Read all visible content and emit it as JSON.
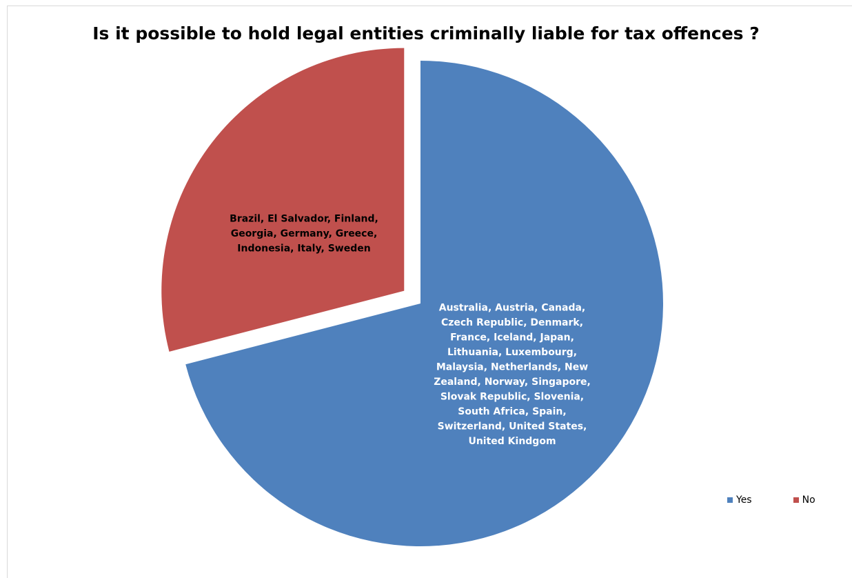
{
  "chart_data": {
    "type": "pie",
    "title": "Is it possible to hold legal entities criminally liable for tax offences ?",
    "categories": [
      "Yes",
      "No"
    ],
    "values": [
      22,
      9
    ],
    "colors": [
      "#4F81BD",
      "#C0504D"
    ],
    "data_labels": [
      [
        "Australia, Austria, Canada,",
        "Czech Republic, Denmark,",
        "France, Iceland, Japan,",
        "Lithuania, Luxembourg,",
        "Malaysia, Netherlands, New",
        "Zealand, Norway, Singapore,",
        "Slovak Republic, Slovenia,",
        "South Africa, Spain,",
        "Switzerland, United States,",
        "United Kindgom"
      ],
      [
        "Brazil, El Salvador, Finland,",
        "Georgia, Germany, Greece,",
        "Indonesia, Italy, Sweden"
      ]
    ],
    "label_colors": [
      "#FFFFFF",
      "#000000"
    ],
    "exploded": [
      "No"
    ],
    "legend": {
      "position": "bottom-right",
      "entries": [
        "Yes",
        "No"
      ]
    }
  }
}
